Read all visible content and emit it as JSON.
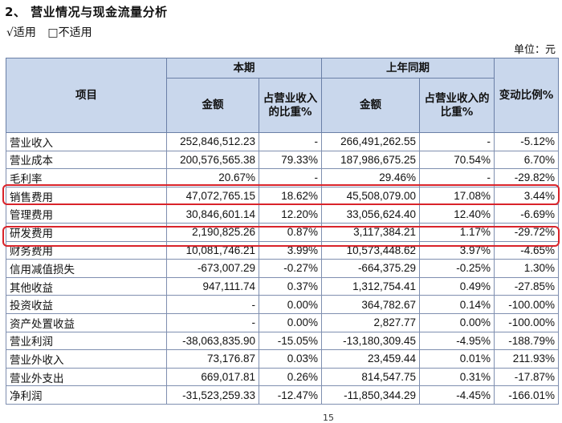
{
  "heading": "2、 营业情况与现金流量分析",
  "applicability": {
    "applicable": "√适用",
    "not_applicable": "□不适用"
  },
  "unit": "单位：元",
  "table": {
    "header": {
      "item": "项目",
      "current_period": "本期",
      "prior_period": "上年同期",
      "change_ratio": "变动比例%",
      "amount": "金额",
      "share_of_revenue_current": "占营业收入的比重%",
      "share_of_revenue_prior": "占营业收入的比重%"
    },
    "rows": [
      {
        "item": "营业收入",
        "cur_amount": "252,846,512.23",
        "cur_pct": "-",
        "prior_amount": "266,491,262.55",
        "prior_pct": "-",
        "change": "-5.12%"
      },
      {
        "item": "营业成本",
        "cur_amount": "200,576,565.38",
        "cur_pct": "79.33%",
        "prior_amount": "187,986,675.25",
        "prior_pct": "70.54%",
        "change": "6.70%"
      },
      {
        "item": "毛利率",
        "cur_amount": "20.67%",
        "cur_pct": "-",
        "prior_amount": "29.46%",
        "prior_pct": "-",
        "change": "-29.82%"
      },
      {
        "item": "销售费用",
        "cur_amount": "47,072,765.15",
        "cur_pct": "18.62%",
        "prior_amount": "45,508,079.00",
        "prior_pct": "17.08%",
        "change": "3.44%"
      },
      {
        "item": "管理费用",
        "cur_amount": "30,846,601.14",
        "cur_pct": "12.20%",
        "prior_amount": "33,056,624.40",
        "prior_pct": "12.40%",
        "change": "-6.69%"
      },
      {
        "item": "研发费用",
        "cur_amount": "2,190,825.26",
        "cur_pct": "0.87%",
        "prior_amount": "3,117,384.21",
        "prior_pct": "1.17%",
        "change": "-29.72%"
      },
      {
        "item": "财务费用",
        "cur_amount": "10,081,746.21",
        "cur_pct": "3.99%",
        "prior_amount": "10,573,448.62",
        "prior_pct": "3.97%",
        "change": "-4.65%"
      },
      {
        "item": "信用减值损失",
        "cur_amount": "-673,007.29",
        "cur_pct": "-0.27%",
        "prior_amount": "-664,375.29",
        "prior_pct": "-0.25%",
        "change": "1.30%"
      },
      {
        "item": "其他收益",
        "cur_amount": "947,111.74",
        "cur_pct": "0.37%",
        "prior_amount": "1,312,754.41",
        "prior_pct": "0.49%",
        "change": "-27.85%"
      },
      {
        "item": "投资收益",
        "cur_amount": "-",
        "cur_pct": "0.00%",
        "prior_amount": "364,782.67",
        "prior_pct": "0.14%",
        "change": "-100.00%"
      },
      {
        "item": "资产处置收益",
        "cur_amount": "-",
        "cur_pct": "0.00%",
        "prior_amount": "2,827.77",
        "prior_pct": "0.00%",
        "change": "-100.00%"
      },
      {
        "item": "营业利润",
        "cur_amount": "-38,063,835.90",
        "cur_pct": "-15.05%",
        "prior_amount": "-13,180,309.45",
        "prior_pct": "-4.95%",
        "change": "-188.79%"
      },
      {
        "item": "营业外收入",
        "cur_amount": "73,176.87",
        "cur_pct": "0.03%",
        "prior_amount": "23,459.44",
        "prior_pct": "0.01%",
        "change": "211.93%"
      },
      {
        "item": "营业外支出",
        "cur_amount": "669,017.81",
        "cur_pct": "0.26%",
        "prior_amount": "814,547.75",
        "prior_pct": "0.31%",
        "change": "-17.87%"
      },
      {
        "item": "净利润",
        "cur_amount": "-31,523,259.33",
        "cur_pct": "-12.47%",
        "prior_amount": "-11,850,344.29",
        "prior_pct": "-4.45%",
        "change": "-166.01%"
      }
    ]
  },
  "highlight_color": "#d9232a",
  "page_number": "15"
}
